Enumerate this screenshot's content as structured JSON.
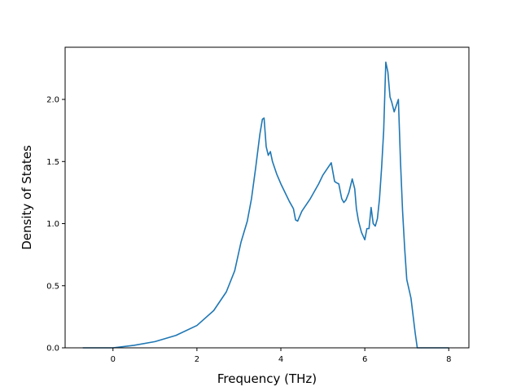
{
  "chart_data": {
    "type": "line",
    "title": "",
    "xlabel": "Frequency (THz)",
    "ylabel": "Density of States",
    "xlim": [
      -1.14,
      8.48
    ],
    "ylim": [
      0.0,
      2.42
    ],
    "xticks": [
      0,
      2,
      4,
      6,
      8
    ],
    "xtick_labels": [
      "0",
      "2",
      "4",
      "6",
      "8"
    ],
    "yticks": [
      0.0,
      0.5,
      1.0,
      1.5,
      2.0
    ],
    "ytick_labels": [
      "0.0",
      "0.5",
      "1.0",
      "1.5",
      "2.0"
    ],
    "grid": false,
    "legend": "none",
    "colors": {
      "line": "#1f77b4",
      "axes": "#000000",
      "background": "#ffffff"
    },
    "series": [
      {
        "x": [
          -0.72,
          0.0,
          0.5,
          1.0,
          1.5,
          2.0,
          2.4,
          2.7,
          2.9,
          3.05,
          3.2,
          3.3,
          3.4,
          3.5,
          3.56,
          3.6,
          3.65,
          3.7,
          3.75,
          3.8,
          3.9,
          4.0,
          4.1,
          4.2,
          4.3,
          4.35,
          4.4,
          4.45,
          4.5,
          4.6,
          4.7,
          4.8,
          4.9,
          5.0,
          5.1,
          5.2,
          5.28,
          5.32,
          5.38,
          5.45,
          5.5,
          5.55,
          5.62,
          5.7,
          5.76,
          5.8,
          5.85,
          5.92,
          6.0,
          6.05,
          6.1,
          6.15,
          6.2,
          6.25,
          6.3,
          6.35,
          6.4,
          6.45,
          6.5,
          6.55,
          6.6,
          6.64,
          6.7,
          6.75,
          6.8,
          6.85,
          6.9,
          6.95,
          7.0,
          7.1,
          7.2,
          7.25,
          7.3,
          7.35,
          7.5,
          8.0
        ],
        "y": [
          0.0,
          0.0,
          0.02,
          0.05,
          0.1,
          0.18,
          0.3,
          0.45,
          0.62,
          0.85,
          1.02,
          1.2,
          1.45,
          1.72,
          1.84,
          1.85,
          1.62,
          1.55,
          1.58,
          1.5,
          1.4,
          1.32,
          1.25,
          1.18,
          1.12,
          1.03,
          1.02,
          1.06,
          1.1,
          1.15,
          1.2,
          1.26,
          1.32,
          1.39,
          1.44,
          1.49,
          1.34,
          1.33,
          1.32,
          1.2,
          1.17,
          1.19,
          1.25,
          1.36,
          1.28,
          1.12,
          1.02,
          0.93,
          0.87,
          0.96,
          0.96,
          1.13,
          1.0,
          0.98,
          1.04,
          1.2,
          1.45,
          1.75,
          2.3,
          2.22,
          2.02,
          1.98,
          1.9,
          1.95,
          2.0,
          1.5,
          1.1,
          0.8,
          0.55,
          0.4,
          0.12,
          0.0,
          0.0,
          0.0,
          0.0,
          0.0
        ]
      }
    ]
  }
}
